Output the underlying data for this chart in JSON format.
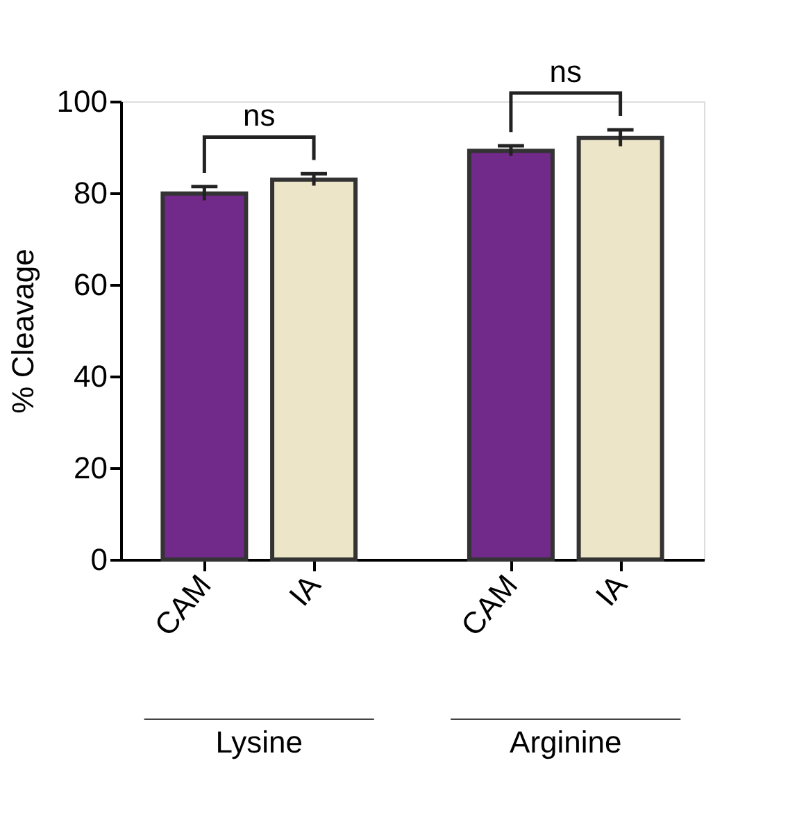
{
  "chart_data": {
    "type": "bar",
    "categories": [
      "CAM",
      "IA",
      "CAM",
      "IA"
    ],
    "values": [
      79.9,
      82.9,
      89.2,
      92.0
    ],
    "errors": [
      1.5,
      1.3,
      1.1,
      1.8
    ],
    "colors": [
      "#722a8a",
      "#ede5c8",
      "#722a8a",
      "#ede5c8"
    ],
    "ylabel": "% Cleavage",
    "ylim": [
      0,
      100
    ],
    "yticks": [
      0,
      20,
      40,
      60,
      80,
      100
    ],
    "annotations": [
      "ns",
      "ns",
      "Lysine",
      "Arginine"
    ],
    "grid": false
  }
}
